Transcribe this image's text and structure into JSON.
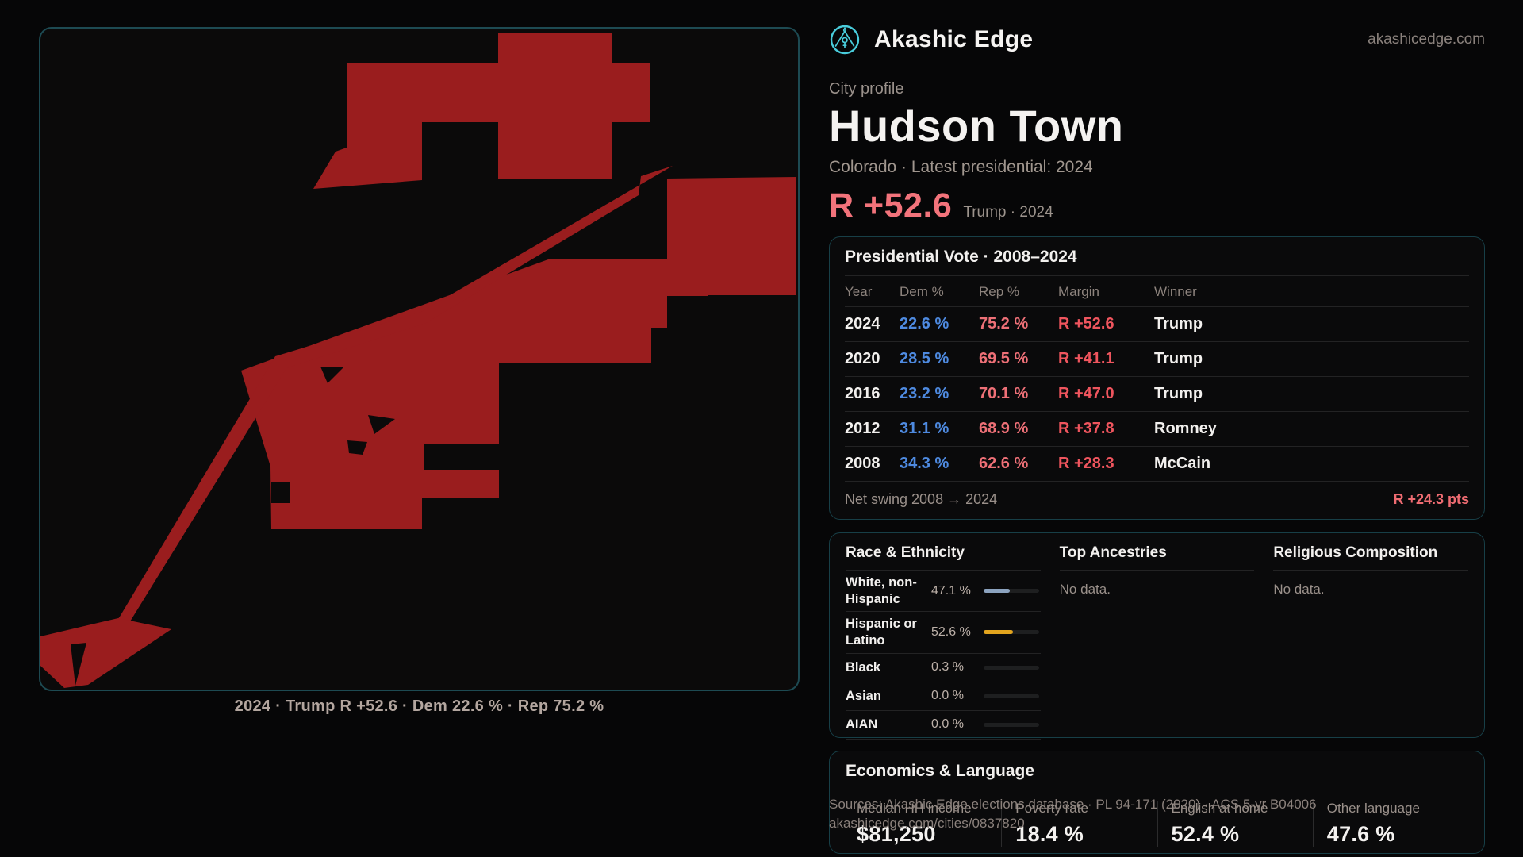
{
  "colors": {
    "accent_teal": "#49ccdb",
    "map_red": "#9a1d1e",
    "dem_blue": "#4e8ae0",
    "rep_salmon": "#ee7077",
    "margin_red": "#ef555e",
    "amber": "#e2a41e",
    "slate": "#8ca3bf"
  },
  "brand": {
    "name": "Akashic Edge",
    "domain": "akashicedge.com",
    "logo_icon": "akashic-emblem-icon"
  },
  "profile": {
    "eyebrow": "City profile",
    "title": "Hudson Town",
    "subtitle": "Colorado · Latest presidential: 2024",
    "margin_big": "R +52.6",
    "margin_context": "Trump · 2024"
  },
  "map": {
    "caption": "2024 · Trump R +52.6 · Dem 22.6 % · Rep 75.2 %"
  },
  "vote_table": {
    "title": "Presidential Vote · 2008–2024",
    "headers": [
      "Year",
      "Dem %",
      "Rep %",
      "Margin",
      "Winner"
    ],
    "rows": [
      {
        "year": "2024",
        "dem": "22.6 %",
        "rep": "75.2 %",
        "margin": "R +52.6",
        "winner": "Trump"
      },
      {
        "year": "2020",
        "dem": "28.5 %",
        "rep": "69.5 %",
        "margin": "R +41.1",
        "winner": "Trump"
      },
      {
        "year": "2016",
        "dem": "23.2 %",
        "rep": "70.1 %",
        "margin": "R +47.0",
        "winner": "Trump"
      },
      {
        "year": "2012",
        "dem": "31.1 %",
        "rep": "68.9 %",
        "margin": "R +37.8",
        "winner": "Romney"
      },
      {
        "year": "2008",
        "dem": "34.3 %",
        "rep": "62.6 %",
        "margin": "R +28.3",
        "winner": "McCain"
      }
    ],
    "net_swing_label": "Net swing 2008 → 2024",
    "net_swing_value": "R +24.3 pts"
  },
  "race": {
    "title": "Race & Ethnicity",
    "rows": [
      {
        "label": "White, non-Hispanic",
        "value": "47.1 %",
        "pct": 47.1,
        "bar_color": "#8ca3bf"
      },
      {
        "label": "Hispanic or Latino",
        "value": "52.6 %",
        "pct": 52.6,
        "bar_color": "#e2a41e"
      },
      {
        "label": "Black",
        "value": "0.3 %",
        "pct": 0.3,
        "bar_color": "#8ca3bf"
      },
      {
        "label": "Asian",
        "value": "0.0 %",
        "pct": 0,
        "bar_color": "#8ca3bf"
      },
      {
        "label": "AIAN",
        "value": "0.0 %",
        "pct": 0,
        "bar_color": "#8ca3bf"
      }
    ]
  },
  "ancestries": {
    "title": "Top Ancestries",
    "empty": "No data."
  },
  "religion": {
    "title": "Religious Composition",
    "empty": "No data."
  },
  "economics": {
    "title": "Economics & Language",
    "stats": [
      {
        "label": "Median HH income",
        "value": "$81,250"
      },
      {
        "label": "Poverty rate",
        "value": "18.4 %"
      },
      {
        "label": "English at home",
        "value": "52.4 %"
      },
      {
        "label": "Other language",
        "value": "47.6 %"
      }
    ]
  },
  "footer": {
    "line1": "Sources: Akashic Edge elections database · PL 94-171 (2020) · ACS 5-yr B04006",
    "line2": "akashicedge.com/cities/0837820"
  }
}
